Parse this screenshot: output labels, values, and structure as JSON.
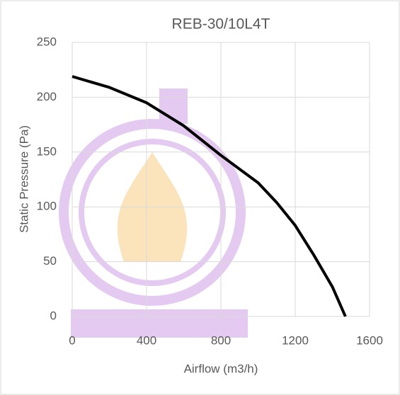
{
  "chart_data": {
    "type": "line",
    "title": "REB-30/10L4T",
    "x_label": "Airflow (m3/h)",
    "y_label": "Static Pressure (Pa)",
    "series": [
      {
        "name": "REB-30/10L4T",
        "color": "#000000",
        "x": [
          0,
          200,
          400,
          600,
          800,
          1000,
          1100,
          1200,
          1300,
          1400,
          1470
        ],
        "values": [
          219,
          209,
          195,
          174,
          147,
          122,
          104,
          83,
          56,
          27,
          0
        ]
      }
    ],
    "xlim": [
      0,
      1600
    ],
    "xticks": [
      0,
      400,
      800,
      1200,
      1600
    ],
    "ylim": [
      0,
      250
    ],
    "yticks": [
      0,
      50,
      100,
      150,
      200,
      250
    ],
    "grid": true
  }
}
